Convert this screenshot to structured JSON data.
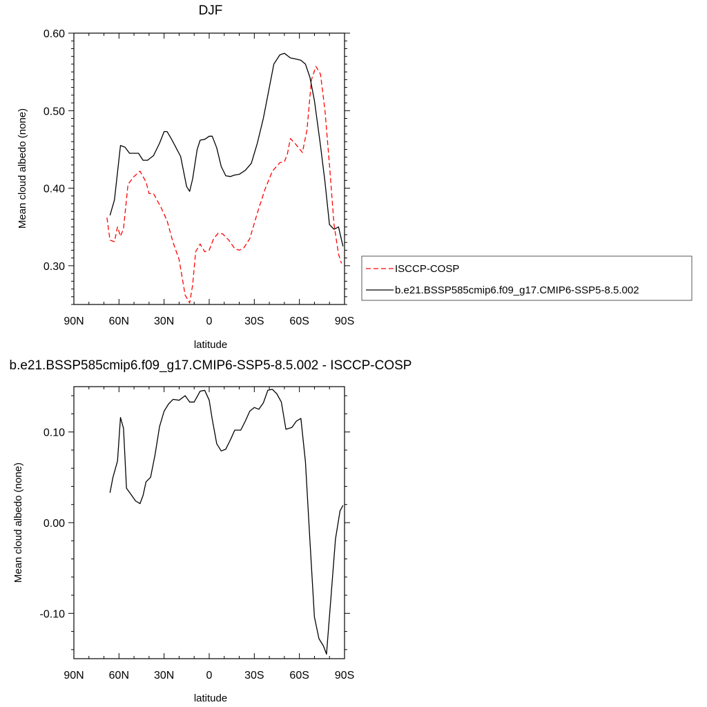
{
  "chart_data": [
    {
      "type": "line",
      "title": "DJF",
      "xlabel": "latitude",
      "ylabel": "Mean cloud albedo (none)",
      "xlim": [
        -90,
        90
      ],
      "ylim": [
        0.25,
        0.6
      ],
      "x_tick_values": [
        -90,
        -60,
        -30,
        0,
        30,
        60,
        90
      ],
      "x_tick_labels": [
        "90N",
        "60N",
        "30N",
        "0",
        "30S",
        "60S",
        "90S"
      ],
      "y_tick_values": [
        0.3,
        0.4,
        0.5,
        0.6
      ],
      "y_tick_labels": [
        "0.30",
        "0.40",
        "0.50",
        "0.60"
      ],
      "grid": false,
      "legend_position": "right",
      "series": [
        {
          "name": "ISCCP-COSP",
          "color": "#ff0000",
          "dash": "dashed",
          "x": [
            -68,
            -66,
            -63,
            -61,
            -59,
            -57,
            -54,
            -50,
            -46,
            -42,
            -40,
            -37,
            -32,
            -28,
            -24,
            -20,
            -16,
            -13,
            -11,
            -9,
            -6,
            -3,
            0,
            3,
            6,
            9,
            13,
            17,
            20,
            23,
            27,
            32,
            37,
            42,
            47,
            50,
            52,
            54,
            57,
            62,
            65,
            68,
            71,
            74,
            77,
            80,
            83,
            86,
            88
          ],
          "y": [
            0.362,
            0.333,
            0.331,
            0.35,
            0.338,
            0.348,
            0.405,
            0.415,
            0.422,
            0.408,
            0.393,
            0.393,
            0.375,
            0.358,
            0.33,
            0.308,
            0.262,
            0.252,
            0.275,
            0.318,
            0.328,
            0.318,
            0.32,
            0.335,
            0.342,
            0.341,
            0.333,
            0.322,
            0.32,
            0.323,
            0.335,
            0.368,
            0.398,
            0.422,
            0.433,
            0.434,
            0.444,
            0.464,
            0.458,
            0.446,
            0.475,
            0.54,
            0.557,
            0.547,
            0.5,
            0.43,
            0.353,
            0.315,
            0.303
          ]
        },
        {
          "name": "b.e21.BSSP585cmip6.f09_g17.CMIP6-SSP5-8.5.002",
          "color": "#000000",
          "dash": "solid",
          "x": [
            -66,
            -63,
            -59,
            -56,
            -53,
            -50,
            -47,
            -44,
            -41,
            -37,
            -33,
            -30,
            -28,
            -25,
            -22,
            -19,
            -15,
            -13,
            -11,
            -8,
            -6,
            -3,
            0,
            2,
            5,
            8,
            11,
            14,
            17,
            20,
            24,
            28,
            32,
            36,
            40,
            43,
            47,
            50,
            54,
            57,
            61,
            64,
            67,
            70,
            74,
            77,
            80,
            83,
            86,
            89
          ],
          "y": [
            0.365,
            0.385,
            0.455,
            0.453,
            0.445,
            0.445,
            0.445,
            0.436,
            0.436,
            0.442,
            0.458,
            0.473,
            0.473,
            0.463,
            0.452,
            0.441,
            0.402,
            0.396,
            0.412,
            0.45,
            0.462,
            0.463,
            0.467,
            0.467,
            0.452,
            0.428,
            0.416,
            0.415,
            0.417,
            0.418,
            0.423,
            0.432,
            0.458,
            0.49,
            0.53,
            0.56,
            0.572,
            0.574,
            0.568,
            0.567,
            0.565,
            0.56,
            0.543,
            0.513,
            0.455,
            0.408,
            0.353,
            0.347,
            0.35,
            0.325
          ]
        }
      ]
    },
    {
      "type": "line",
      "title": "b.e21.BSSP585cmip6.f09_g17.CMIP6-SSP5-8.5.002 - ISCCP-COSP",
      "xlabel": "latitude",
      "ylabel": "Mean cloud albedo (none)",
      "xlim": [
        -90,
        90
      ],
      "ylim": [
        -0.15,
        0.15
      ],
      "x_tick_values": [
        -90,
        -60,
        -30,
        0,
        30,
        60,
        90
      ],
      "x_tick_labels": [
        "90N",
        "60N",
        "30N",
        "0",
        "30S",
        "60S",
        "90S"
      ],
      "y_tick_values": [
        -0.1,
        0.0,
        0.1
      ],
      "y_tick_labels": [
        "-0.10",
        "0.00",
        "0.10"
      ],
      "grid": false,
      "series": [
        {
          "color": "#000000",
          "dash": "solid",
          "x": [
            -66,
            -64,
            -61,
            -59,
            -57,
            -55,
            -52,
            -49,
            -46,
            -44,
            -42,
            -39,
            -36,
            -33,
            -30,
            -27,
            -24,
            -20,
            -16,
            -13,
            -10,
            -6,
            -3,
            0,
            2,
            5,
            8,
            11,
            14,
            17,
            21,
            24,
            27,
            30,
            33,
            36,
            39,
            42,
            45,
            48,
            51,
            55,
            58,
            61,
            64,
            67,
            70,
            73,
            76,
            78,
            81,
            84,
            87,
            89
          ],
          "y": [
            0.033,
            0.05,
            0.068,
            0.116,
            0.104,
            0.038,
            0.031,
            0.024,
            0.021,
            0.03,
            0.045,
            0.05,
            0.075,
            0.106,
            0.123,
            0.131,
            0.136,
            0.135,
            0.14,
            0.133,
            0.133,
            0.145,
            0.146,
            0.135,
            0.114,
            0.087,
            0.079,
            0.081,
            0.091,
            0.102,
            0.102,
            0.112,
            0.123,
            0.127,
            0.125,
            0.132,
            0.146,
            0.147,
            0.142,
            0.133,
            0.103,
            0.105,
            0.112,
            0.115,
            0.067,
            -0.02,
            -0.104,
            -0.128,
            -0.136,
            -0.145,
            -0.082,
            -0.018,
            0.013,
            0.019
          ]
        }
      ]
    }
  ]
}
